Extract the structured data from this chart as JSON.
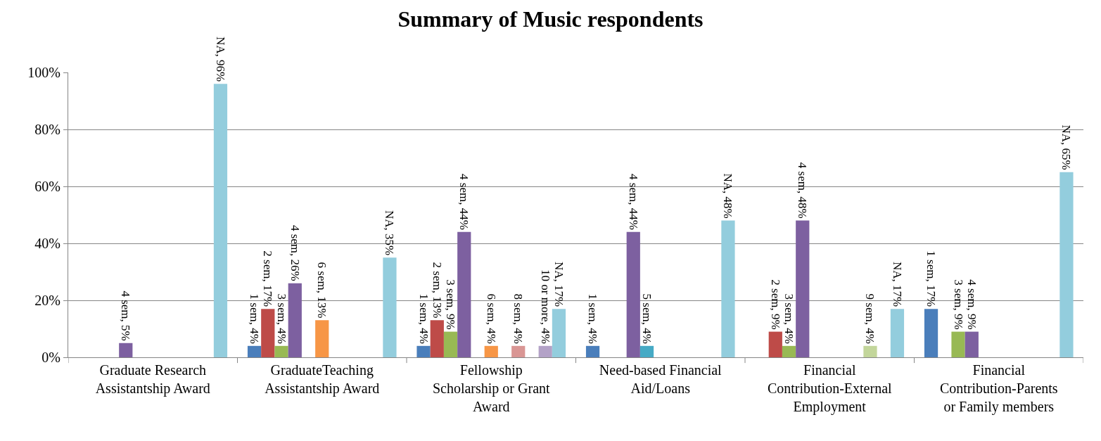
{
  "chart_data": {
    "type": "bar",
    "title": "Summary of Music respondents",
    "categories": [
      "Graduate Research Assistantship Award",
      "GraduateTeaching Assistantship Award",
      "Fellowship Scholarship or Grant Award",
      "Need-based Financial Aid/Loans",
      "Financial Contribution-External Employment",
      "Financial Contribution-Parents or Family members"
    ],
    "series": [
      {
        "color": "#4a7ebb",
        "values": [
          null,
          4,
          4,
          4,
          null,
          17
        ],
        "value_labels": [
          null,
          "1 sem, 4%",
          "1 sem, 4%",
          "1 sem, 4%",
          null,
          "1 sem, 17%"
        ]
      },
      {
        "color": "#be4b48",
        "values": [
          null,
          17,
          13,
          null,
          9,
          null
        ],
        "value_labels": [
          null,
          "2 sem, 17%",
          "2 sem, 13%",
          null,
          "2 sem, 9%",
          null
        ]
      },
      {
        "color": "#98b954",
        "values": [
          null,
          4,
          9,
          null,
          4,
          9
        ],
        "value_labels": [
          null,
          "3 sem, 4%",
          "3 sem, 9%",
          null,
          "3 sem, 4%",
          "3 sem, 9%"
        ]
      },
      {
        "color": "#7d60a0",
        "values": [
          5,
          26,
          44,
          44,
          48,
          9
        ],
        "value_labels": [
          "4 sem, 5%",
          "4 sem, 26%",
          "4 sem, 44%",
          "4 sem, 44%",
          "4 sem, 48%",
          "4 sem, 9%"
        ]
      },
      {
        "color": "#46aac5",
        "values": [
          null,
          null,
          null,
          4,
          null,
          null
        ],
        "value_labels": [
          null,
          null,
          null,
          "5 sem, 4%",
          null,
          null
        ]
      },
      {
        "color": "#f79646",
        "values": [
          null,
          13,
          4,
          null,
          null,
          null
        ],
        "value_labels": [
          null,
          "6 sem, 13%",
          "6 sem, 4%",
          null,
          null,
          null
        ]
      },
      {
        "color": "#2c4d75",
        "values": [
          null,
          null,
          null,
          null,
          null,
          null
        ]
      },
      {
        "color": "#d99694",
        "values": [
          null,
          null,
          4,
          null,
          null,
          null
        ],
        "value_labels": [
          null,
          null,
          "8 sem, 4%",
          null,
          null,
          null
        ]
      },
      {
        "color": "#c3d69b",
        "values": [
          null,
          null,
          null,
          null,
          4,
          null
        ],
        "value_labels": [
          null,
          null,
          null,
          null,
          "9 sem, 4%",
          null
        ]
      },
      {
        "color": "#b3a2c7",
        "values": [
          null,
          null,
          4,
          null,
          null,
          null
        ],
        "value_labels": [
          null,
          null,
          "10 or more, 4%",
          null,
          null,
          null
        ]
      },
      {
        "color": "#93cddd",
        "values": [
          96,
          35,
          17,
          48,
          17,
          65
        ],
        "value_labels": [
          "NA, 96%",
          "NA, 35%",
          "NA, 17%",
          "NA, 48%",
          "NA, 17%",
          "NA, 65%"
        ]
      }
    ],
    "ylim": [
      0,
      100
    ],
    "yticks": [
      {
        "value": 0,
        "label": "0%"
      },
      {
        "value": 20,
        "label": "20%"
      },
      {
        "value": 40,
        "label": "40%"
      },
      {
        "value": 60,
        "label": "60%"
      },
      {
        "value": 80,
        "label": "80%"
      },
      {
        "value": 100,
        "label": "100%"
      }
    ],
    "grid": "y"
  }
}
